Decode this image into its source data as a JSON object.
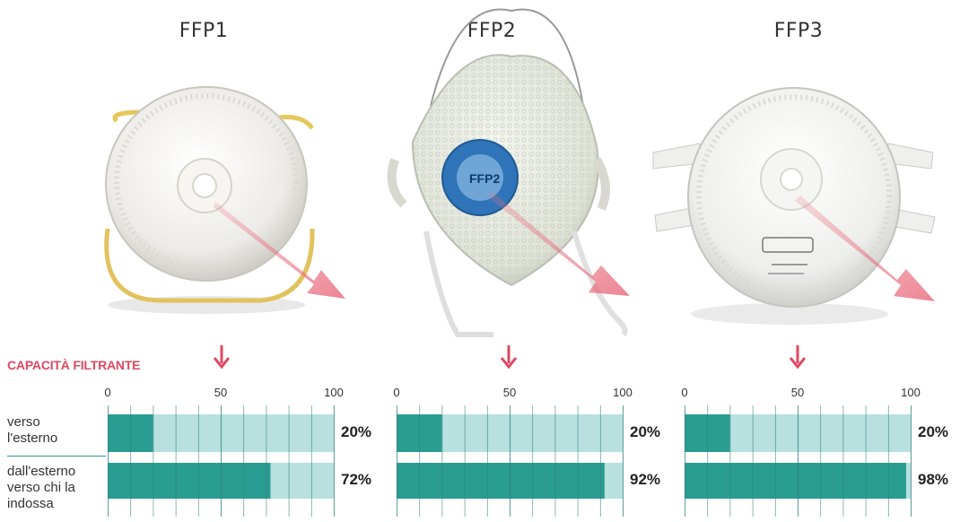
{
  "section_label": "CAPACITÀ FILTRANTE",
  "row_labels": {
    "outward": [
      "verso",
      "l'esterno"
    ],
    "inward": [
      "dall'esterno",
      "verso chi la",
      "indossa"
    ]
  },
  "colors": {
    "accent": "#e0485f",
    "bar_fill": "#2a9d92",
    "bar_track": "#b7e0df",
    "grid": "#2f7f7a"
  },
  "masks": [
    {
      "name": "FFP1",
      "valve_print": ""
    },
    {
      "name": "FFP2",
      "valve_print": "FFP2"
    },
    {
      "name": "FFP3",
      "valve_print": ""
    }
  ],
  "chart_data": {
    "type": "bar",
    "orientation": "horizontal",
    "title": "CAPACITÀ FILTRANTE",
    "xlim": [
      0,
      100
    ],
    "ticks": [
      "0",
      "50",
      "100"
    ],
    "categories": [
      "verso l'esterno",
      "dall'esterno verso chi la indossa"
    ],
    "panels": [
      {
        "name": "FFP1",
        "values": [
          20,
          72
        ],
        "labels": [
          "20%",
          "72%"
        ]
      },
      {
        "name": "FFP2",
        "values": [
          20,
          92
        ],
        "labels": [
          "20%",
          "92%"
        ]
      },
      {
        "name": "FFP3",
        "values": [
          20,
          98
        ],
        "labels": [
          "20%",
          "98%"
        ]
      }
    ]
  }
}
